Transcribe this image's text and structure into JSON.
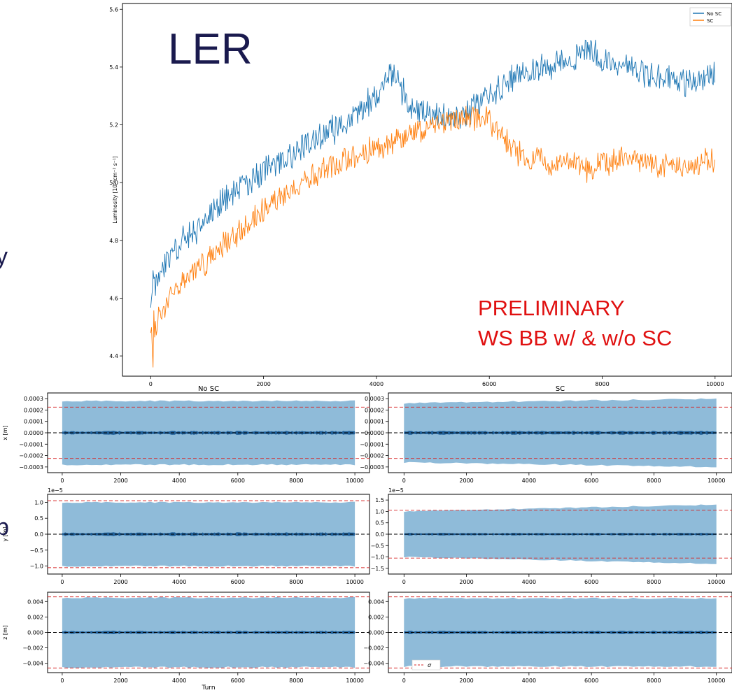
{
  "colors": {
    "no_sc": "#1f77b4",
    "sc": "#ff7f0e",
    "band": "#8fbbd9",
    "ref_line": "#d62728",
    "zero_line": "#000000"
  },
  "overlay": {
    "title": "LER",
    "note_line1": "PRELIMINARY",
    "note_line2": "WS BB w/ & w/o SC"
  },
  "edge_text": {
    "left_mark_1": "y",
    "left_mark_2": "p"
  },
  "chart_data": [
    {
      "type": "line",
      "id": "luminosity",
      "title": "",
      "xlabel": "",
      "ylabel": "Luminosity [10³⁴cm⁻² s⁻¹]",
      "xlim": [
        -500,
        10300
      ],
      "ylim": [
        4.33,
        5.62
      ],
      "xticks": [
        "0",
        "2000",
        "4000",
        "6000",
        "8000",
        "10000"
      ],
      "yticks": [
        "4.4",
        "4.6",
        "4.8",
        "5.0",
        "5.2",
        "5.4",
        "5.6"
      ],
      "legend": {
        "placement": "top-right",
        "entries": [
          "No SC",
          "SC"
        ]
      },
      "x": [
        0,
        200,
        500,
        1000,
        1500,
        2000,
        2500,
        3000,
        3500,
        4000,
        4300,
        4600,
        5000,
        5500,
        6000,
        6500,
        7000,
        7500,
        7800,
        8000,
        8500,
        9000,
        9500,
        10000
      ],
      "series": [
        {
          "name": "No SC",
          "values": [
            4.62,
            4.7,
            4.78,
            4.88,
            4.97,
            5.04,
            5.1,
            5.16,
            5.21,
            5.3,
            5.38,
            5.26,
            5.24,
            5.22,
            5.3,
            5.38,
            5.4,
            5.43,
            5.46,
            5.42,
            5.4,
            5.36,
            5.35,
            5.38
          ],
          "noise": 0.045
        },
        {
          "name": "SC",
          "values": [
            4.45,
            4.56,
            4.64,
            4.73,
            4.82,
            4.9,
            4.98,
            5.04,
            5.08,
            5.12,
            5.14,
            5.17,
            5.2,
            5.22,
            5.22,
            5.1,
            5.07,
            5.06,
            5.04,
            5.07,
            5.08,
            5.06,
            5.05,
            5.08
          ],
          "noise": 0.04
        }
      ]
    },
    {
      "type": "area",
      "id": "x-nosc",
      "title": "No SC",
      "ylabel": "x [m]",
      "xlabel": "",
      "xlim": [
        -500,
        10500
      ],
      "ylim": [
        -0.00035,
        0.00035
      ],
      "xticks": [
        "0",
        "2000",
        "4000",
        "6000",
        "8000",
        "10000"
      ],
      "yticks": [
        "−0.0003",
        "−0.0002",
        "−0.0001",
        "0.0000",
        "0.0001",
        "0.0002",
        "0.0003"
      ],
      "band": {
        "x": [
          0,
          10000
        ],
        "upper": [
          0.00028,
          0.00028
        ],
        "lower": [
          -0.00028,
          -0.00028
        ]
      },
      "ref_lines": [
        0.000225,
        -0.000225
      ],
      "spread": 1.2e-05
    },
    {
      "type": "area",
      "id": "x-sc",
      "title": "SC",
      "ylabel": "",
      "xlabel": "",
      "xlim": [
        -500,
        10500
      ],
      "ylim": [
        -0.00035,
        0.00035
      ],
      "xticks": [
        "0",
        "2000",
        "4000",
        "6000",
        "8000",
        "10000"
      ],
      "yticks": [
        "−0.0003",
        "−0.0002",
        "−0.0001",
        "0.0000",
        "0.0001",
        "0.0002",
        "0.0003"
      ],
      "band": {
        "x": [
          0,
          10000
        ],
        "upper": [
          0.00026,
          0.0003
        ],
        "lower": [
          -0.00026,
          -0.0003
        ]
      },
      "ref_lines": [
        0.000225,
        -0.000225
      ],
      "spread": 1.2e-05
    },
    {
      "type": "area",
      "id": "y-nosc",
      "title": "",
      "ylabel": "y [m]",
      "xlabel": "",
      "multiplier": "1e−5",
      "xlim": [
        -500,
        10500
      ],
      "ylim": [
        -1.25,
        1.25
      ],
      "xticks": [
        "0",
        "2000",
        "4000",
        "6000",
        "8000",
        "10000"
      ],
      "yticks": [
        "−1.0",
        "−0.5",
        "0.0",
        "0.5",
        "1.0"
      ],
      "band": {
        "x": [
          0,
          10000
        ],
        "upper": [
          1.0,
          1.0
        ],
        "lower": [
          -1.0,
          -1.0
        ]
      },
      "ref_lines": [
        1.05,
        -1.05
      ],
      "spread": 0.04
    },
    {
      "type": "area",
      "id": "y-sc",
      "title": "",
      "ylabel": "",
      "xlabel": "",
      "multiplier": "1e−5",
      "xlim": [
        -500,
        10500
      ],
      "ylim": [
        -1.75,
        1.75
      ],
      "xticks": [
        "0",
        "2000",
        "4000",
        "6000",
        "8000",
        "10000"
      ],
      "yticks": [
        "−1.5",
        "−1.0",
        "−0.5",
        "0.0",
        "0.5",
        "1.0",
        "1.5"
      ],
      "band": {
        "x": [
          0,
          10000
        ],
        "upper": [
          1.0,
          1.3
        ],
        "lower": [
          -1.0,
          -1.3
        ]
      },
      "ref_lines": [
        1.05,
        -1.05
      ],
      "spread": 0.04
    },
    {
      "type": "area",
      "id": "z-nosc",
      "title": "",
      "ylabel": "z [m]",
      "xlabel": "",
      "xlim": [
        -500,
        10500
      ],
      "ylim": [
        -0.0052,
        0.0052
      ],
      "xticks": [
        "0",
        "2000",
        "4000",
        "6000",
        "8000",
        "10000"
      ],
      "yticks": [
        "−0.004",
        "−0.002",
        "0.000",
        "0.002",
        "0.004"
      ],
      "band": {
        "x": [
          0,
          10000
        ],
        "upper": [
          0.0045,
          0.0045
        ],
        "lower": [
          -0.0045,
          -0.0045
        ]
      },
      "ref_lines": [
        0.0046,
        -0.0046
      ],
      "spread": 0.00015
    },
    {
      "type": "area",
      "id": "z-sc",
      "title": "",
      "ylabel": "",
      "xlabel": "",
      "xlim": [
        -500,
        10500
      ],
      "ylim": [
        -0.0052,
        0.0052
      ],
      "xticks": [
        "0",
        "2000",
        "4000",
        "6000",
        "8000",
        "10000"
      ],
      "yticks": [
        "−0.004",
        "−0.002",
        "0.000",
        "0.002",
        "0.004"
      ],
      "band": {
        "x": [
          0,
          10000
        ],
        "upper": [
          0.0044,
          0.0044
        ],
        "lower": [
          -0.0044,
          -0.0044
        ]
      },
      "ref_lines": [
        0.0046,
        -0.0046
      ],
      "spread": 0.00015,
      "legend_label": "σ"
    }
  ],
  "shared_xlabel": "Turn"
}
